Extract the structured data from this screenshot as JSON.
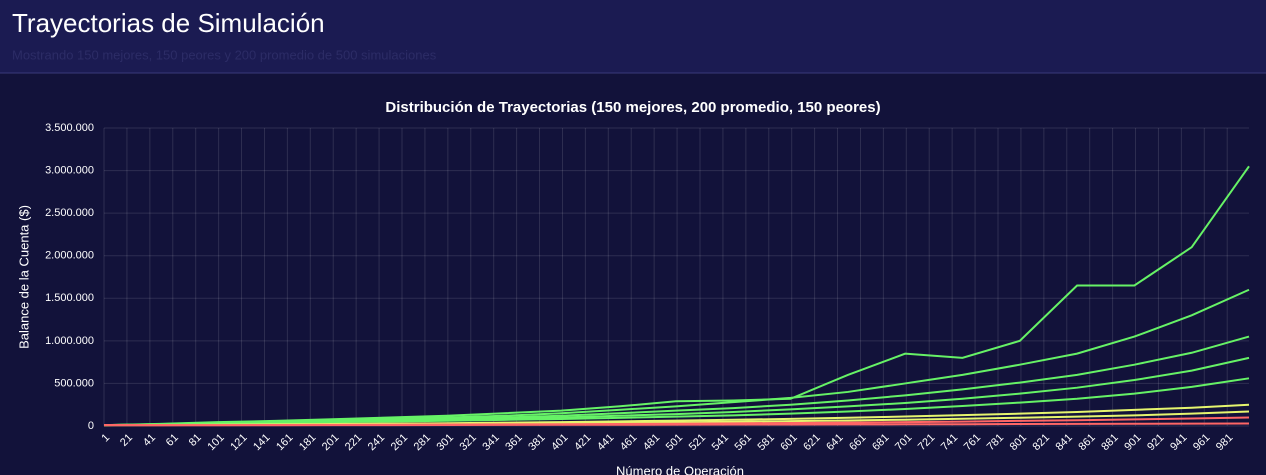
{
  "header": {
    "title": "Trayectorias de Simulación",
    "subtitle": "Mostrando 150 mejores, 150 peores y 200 promedio de 500 simulaciones"
  },
  "chart_data": {
    "type": "line",
    "title": "Distribución de Trayectorias (150 mejores, 200 promedio, 150 peores)",
    "x_label": "Número de Operación",
    "y_label": "Balance de la Cuenta ($)",
    "x": [
      1,
      50,
      100,
      150,
      200,
      250,
      300,
      350,
      400,
      450,
      500,
      550,
      600,
      650,
      700,
      750,
      800,
      850,
      900,
      950,
      1000
    ],
    "series": [
      {
        "color": "#66f266",
        "values": [
          10000,
          25000,
          45000,
          60000,
          80000,
          100000,
          120000,
          150000,
          180000,
          230000,
          290000,
          300000,
          320000,
          600000,
          850000,
          800000,
          1000000,
          1650000,
          1650000,
          2100000,
          3050000
        ]
      },
      {
        "color": "#66f266",
        "values": [
          10000,
          22000,
          40000,
          55000,
          70000,
          85000,
          100000,
          120000,
          150000,
          190000,
          230000,
          280000,
          330000,
          400000,
          500000,
          600000,
          720000,
          850000,
          1050000,
          1300000,
          1600000
        ]
      },
      {
        "color": "#66f266",
        "values": [
          10000,
          20000,
          35000,
          48000,
          60000,
          72000,
          85000,
          100000,
          120000,
          150000,
          180000,
          210000,
          250000,
          300000,
          360000,
          430000,
          510000,
          600000,
          720000,
          860000,
          1050000
        ]
      },
      {
        "color": "#66f266",
        "values": [
          10000,
          18000,
          30000,
          42000,
          52000,
          62000,
          73000,
          85000,
          100000,
          120000,
          140000,
          165000,
          195000,
          230000,
          270000,
          320000,
          380000,
          450000,
          540000,
          650000,
          800000
        ]
      },
      {
        "color": "#66f266",
        "values": [
          10000,
          16000,
          26000,
          36000,
          45000,
          53000,
          62000,
          72000,
          82000,
          95000,
          110000,
          125000,
          145000,
          170000,
          200000,
          235000,
          275000,
          320000,
          380000,
          460000,
          560000
        ]
      },
      {
        "color": "#e6f56e",
        "values": [
          10000,
          12000,
          15000,
          19000,
          23000,
          28000,
          33000,
          39000,
          46000,
          54000,
          63000,
          73000,
          84000,
          97000,
          111000,
          127000,
          145000,
          165000,
          190000,
          215000,
          250000
        ]
      },
      {
        "color": "#e6f56e",
        "values": [
          10000,
          11000,
          13000,
          15000,
          18000,
          21000,
          24000,
          28000,
          32000,
          37000,
          43000,
          50000,
          57000,
          65000,
          74000,
          85000,
          97000,
          110000,
          125000,
          145000,
          170000
        ]
      },
      {
        "color": "#ff6666",
        "values": [
          10000,
          10000,
          11000,
          12000,
          13000,
          15000,
          17000,
          19000,
          21000,
          24000,
          27000,
          31000,
          35000,
          40000,
          46000,
          52000,
          60000,
          68000,
          78000,
          88000,
          100000
        ]
      },
      {
        "color": "#ff6666",
        "values": [
          10000,
          9000,
          9000,
          9500,
          10000,
          11000,
          12000,
          13000,
          14000,
          15000,
          16000,
          17000,
          18000,
          19000,
          20000,
          21000,
          23000,
          25000,
          26000,
          28000,
          30000
        ]
      }
    ],
    "xlim": [
      1,
      1000
    ],
    "xticks": [
      1,
      21,
      41,
      61,
      81,
      101,
      121,
      141,
      161,
      181,
      201,
      221,
      241,
      261,
      281,
      301,
      321,
      341,
      361,
      381,
      401,
      421,
      441,
      461,
      481,
      501,
      521,
      541,
      561,
      581,
      601,
      621,
      641,
      661,
      681,
      701,
      721,
      741,
      761,
      781,
      801,
      821,
      841,
      861,
      881,
      901,
      921,
      941,
      961,
      981
    ],
    "ylim": [
      0,
      3500000
    ],
    "yticks": [
      0,
      {
        "value": 500000,
        "label": "500.000"
      },
      {
        "value": 1000000,
        "label": "1.000.000"
      },
      {
        "value": 1500000,
        "label": "1.500.000"
      },
      {
        "value": 2000000,
        "label": "2.000.000"
      },
      {
        "value": 2500000,
        "label": "2.500.000"
      },
      {
        "value": 3000000,
        "label": "3.000.000"
      },
      {
        "value": 3500000,
        "label": "3.500.000"
      }
    ],
    "grid": true
  }
}
